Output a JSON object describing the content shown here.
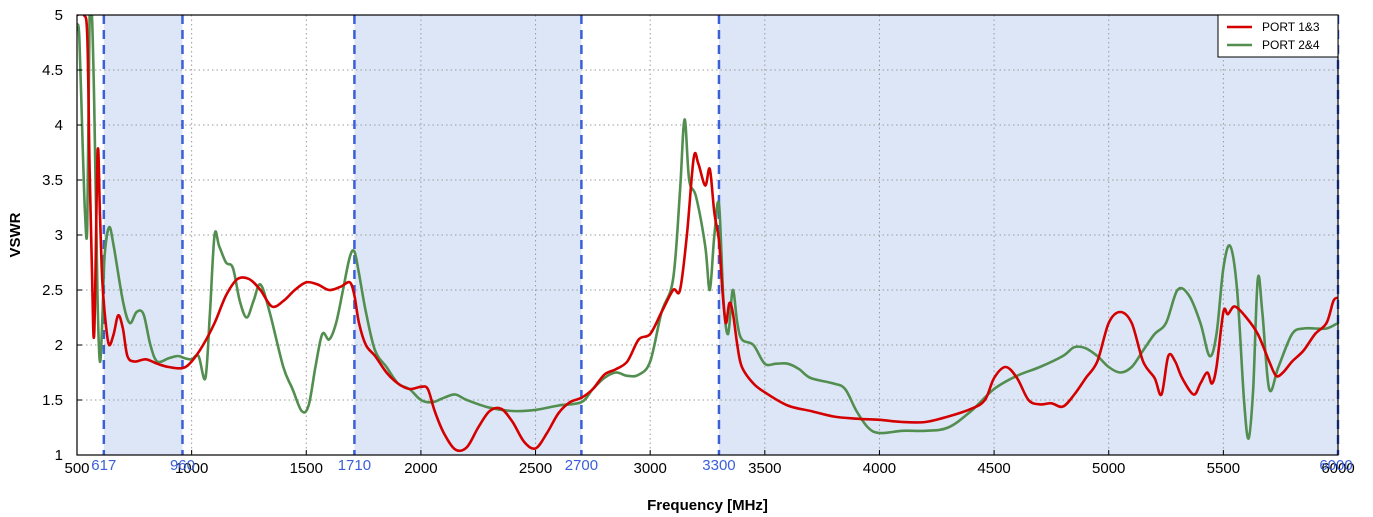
{
  "chart_data": {
    "type": "line",
    "xlabel": "Frequency [MHz]",
    "ylabel": "VSWR",
    "xlim": [
      500,
      6000
    ],
    "ylim": [
      1,
      5
    ],
    "grid": true,
    "legend_position": "top-right",
    "x_ticks": [
      "500",
      "1000",
      "1500",
      "2000",
      "2500",
      "3000",
      "3500",
      "4000",
      "4500",
      "5000",
      "5500",
      "6000"
    ],
    "y_ticks": [
      "1",
      "1.5",
      "2",
      "2.5",
      "3",
      "3.5",
      "4",
      "4.5",
      "5"
    ],
    "x_tick_values": [
      500,
      1000,
      1500,
      2000,
      2500,
      3000,
      3500,
      4000,
      4500,
      5000,
      5500,
      6000
    ],
    "y_tick_values": [
      1,
      1.5,
      2,
      2.5,
      3,
      3.5,
      4,
      4.5,
      5
    ],
    "bands": [
      [
        617,
        960
      ],
      [
        1710,
        2700
      ],
      [
        3300,
        6000
      ]
    ],
    "band_color": "#dde6f7",
    "band_edges": [
      {
        "value": 617,
        "label": "617"
      },
      {
        "value": 960,
        "label": "960"
      },
      {
        "value": 1710,
        "label": "1710"
      },
      {
        "value": 2700,
        "label": "2700"
      },
      {
        "value": 3300,
        "label": "3300"
      },
      {
        "value": 6000,
        "label": "6000"
      }
    ],
    "band_edge_color": "#3a5fd9",
    "series": [
      {
        "name": "PORT 1&3",
        "color": "#d40000",
        "points": [
          [
            500,
            5
          ],
          [
            530,
            5
          ],
          [
            545,
            4.8
          ],
          [
            555,
            3.6
          ],
          [
            565,
            2.7
          ],
          [
            575,
            2.1
          ],
          [
            590,
            3.75
          ],
          [
            600,
            3.2
          ],
          [
            610,
            2.6
          ],
          [
            625,
            2.2
          ],
          [
            640,
            2.0
          ],
          [
            660,
            2.1
          ],
          [
            680,
            2.27
          ],
          [
            700,
            2.15
          ],
          [
            720,
            1.9
          ],
          [
            750,
            1.85
          ],
          [
            800,
            1.87
          ],
          [
            850,
            1.83
          ],
          [
            900,
            1.8
          ],
          [
            960,
            1.79
          ],
          [
            1000,
            1.85
          ],
          [
            1050,
            2.0
          ],
          [
            1100,
            2.2
          ],
          [
            1150,
            2.45
          ],
          [
            1200,
            2.6
          ],
          [
            1250,
            2.6
          ],
          [
            1300,
            2.5
          ],
          [
            1350,
            2.35
          ],
          [
            1400,
            2.4
          ],
          [
            1450,
            2.5
          ],
          [
            1500,
            2.57
          ],
          [
            1550,
            2.55
          ],
          [
            1600,
            2.5
          ],
          [
            1650,
            2.53
          ],
          [
            1690,
            2.57
          ],
          [
            1710,
            2.45
          ],
          [
            1730,
            2.2
          ],
          [
            1760,
            2.0
          ],
          [
            1800,
            1.9
          ],
          [
            1850,
            1.75
          ],
          [
            1900,
            1.65
          ],
          [
            1950,
            1.6
          ],
          [
            2000,
            1.62
          ],
          [
            2030,
            1.6
          ],
          [
            2060,
            1.4
          ],
          [
            2100,
            1.2
          ],
          [
            2150,
            1.05
          ],
          [
            2200,
            1.07
          ],
          [
            2250,
            1.25
          ],
          [
            2300,
            1.4
          ],
          [
            2350,
            1.42
          ],
          [
            2400,
            1.3
          ],
          [
            2450,
            1.12
          ],
          [
            2500,
            1.06
          ],
          [
            2550,
            1.2
          ],
          [
            2600,
            1.38
          ],
          [
            2650,
            1.48
          ],
          [
            2700,
            1.52
          ],
          [
            2750,
            1.6
          ],
          [
            2800,
            1.73
          ],
          [
            2850,
            1.78
          ],
          [
            2900,
            1.85
          ],
          [
            2950,
            2.05
          ],
          [
            3000,
            2.1
          ],
          [
            3050,
            2.3
          ],
          [
            3100,
            2.5
          ],
          [
            3130,
            2.5
          ],
          [
            3160,
            3.0
          ],
          [
            3190,
            3.7
          ],
          [
            3210,
            3.65
          ],
          [
            3240,
            3.45
          ],
          [
            3260,
            3.6
          ],
          [
            3280,
            3.2
          ],
          [
            3300,
            2.95
          ],
          [
            3315,
            2.5
          ],
          [
            3330,
            2.2
          ],
          [
            3345,
            2.38
          ],
          [
            3360,
            2.3
          ],
          [
            3380,
            2.0
          ],
          [
            3400,
            1.8
          ],
          [
            3450,
            1.65
          ],
          [
            3500,
            1.57
          ],
          [
            3600,
            1.45
          ],
          [
            3700,
            1.4
          ],
          [
            3800,
            1.35
          ],
          [
            3900,
            1.33
          ],
          [
            4000,
            1.32
          ],
          [
            4100,
            1.3
          ],
          [
            4200,
            1.3
          ],
          [
            4300,
            1.35
          ],
          [
            4400,
            1.42
          ],
          [
            4460,
            1.5
          ],
          [
            4500,
            1.7
          ],
          [
            4550,
            1.8
          ],
          [
            4600,
            1.7
          ],
          [
            4650,
            1.5
          ],
          [
            4700,
            1.46
          ],
          [
            4750,
            1.47
          ],
          [
            4800,
            1.44
          ],
          [
            4850,
            1.55
          ],
          [
            4900,
            1.7
          ],
          [
            4950,
            1.85
          ],
          [
            5000,
            2.2
          ],
          [
            5050,
            2.3
          ],
          [
            5100,
            2.2
          ],
          [
            5150,
            1.85
          ],
          [
            5200,
            1.7
          ],
          [
            5230,
            1.55
          ],
          [
            5260,
            1.9
          ],
          [
            5290,
            1.85
          ],
          [
            5320,
            1.7
          ],
          [
            5370,
            1.55
          ],
          [
            5400,
            1.65
          ],
          [
            5430,
            1.75
          ],
          [
            5450,
            1.65
          ],
          [
            5470,
            1.8
          ],
          [
            5500,
            2.3
          ],
          [
            5520,
            2.28
          ],
          [
            5550,
            2.35
          ],
          [
            5600,
            2.25
          ],
          [
            5650,
            2.1
          ],
          [
            5700,
            1.85
          ],
          [
            5730,
            1.72
          ],
          [
            5760,
            1.75
          ],
          [
            5800,
            1.85
          ],
          [
            5850,
            1.95
          ],
          [
            5900,
            2.1
          ],
          [
            5950,
            2.2
          ],
          [
            5980,
            2.4
          ],
          [
            6000,
            2.43
          ]
        ]
      },
      {
        "name": "PORT 2&4",
        "color": "#528e4f",
        "points": [
          [
            500,
            4.9
          ],
          [
            510,
            4.8
          ],
          [
            525,
            3.8
          ],
          [
            535,
            3.2
          ],
          [
            545,
            3.1
          ],
          [
            555,
            5
          ],
          [
            565,
            5
          ],
          [
            575,
            4.2
          ],
          [
            590,
            2.4
          ],
          [
            600,
            1.85
          ],
          [
            610,
            2.2
          ],
          [
            620,
            2.8
          ],
          [
            640,
            3.07
          ],
          [
            660,
            2.9
          ],
          [
            700,
            2.4
          ],
          [
            730,
            2.2
          ],
          [
            760,
            2.3
          ],
          [
            790,
            2.28
          ],
          [
            820,
            2.0
          ],
          [
            850,
            1.85
          ],
          [
            900,
            1.88
          ],
          [
            940,
            1.9
          ],
          [
            970,
            1.88
          ],
          [
            1000,
            1.87
          ],
          [
            1030,
            1.9
          ],
          [
            1060,
            1.7
          ],
          [
            1080,
            2.3
          ],
          [
            1100,
            3.0
          ],
          [
            1120,
            2.9
          ],
          [
            1150,
            2.75
          ],
          [
            1180,
            2.7
          ],
          [
            1210,
            2.4
          ],
          [
            1240,
            2.25
          ],
          [
            1270,
            2.4
          ],
          [
            1300,
            2.55
          ],
          [
            1340,
            2.3
          ],
          [
            1400,
            1.8
          ],
          [
            1440,
            1.6
          ],
          [
            1480,
            1.4
          ],
          [
            1510,
            1.45
          ],
          [
            1540,
            1.8
          ],
          [
            1570,
            2.1
          ],
          [
            1600,
            2.05
          ],
          [
            1630,
            2.2
          ],
          [
            1660,
            2.5
          ],
          [
            1690,
            2.8
          ],
          [
            1710,
            2.85
          ],
          [
            1730,
            2.65
          ],
          [
            1760,
            2.3
          ],
          [
            1800,
            1.95
          ],
          [
            1850,
            1.8
          ],
          [
            1900,
            1.65
          ],
          [
            1950,
            1.6
          ],
          [
            2000,
            1.5
          ],
          [
            2050,
            1.48
          ],
          [
            2100,
            1.52
          ],
          [
            2150,
            1.55
          ],
          [
            2200,
            1.5
          ],
          [
            2300,
            1.43
          ],
          [
            2400,
            1.4
          ],
          [
            2500,
            1.41
          ],
          [
            2600,
            1.45
          ],
          [
            2700,
            1.48
          ],
          [
            2750,
            1.6
          ],
          [
            2800,
            1.7
          ],
          [
            2850,
            1.75
          ],
          [
            2900,
            1.72
          ],
          [
            2950,
            1.73
          ],
          [
            3000,
            1.85
          ],
          [
            3050,
            2.3
          ],
          [
            3100,
            2.6
          ],
          [
            3130,
            3.4
          ],
          [
            3150,
            4.05
          ],
          [
            3170,
            3.5
          ],
          [
            3200,
            3.35
          ],
          [
            3240,
            2.9
          ],
          [
            3260,
            2.5
          ],
          [
            3280,
            3.0
          ],
          [
            3300,
            3.28
          ],
          [
            3320,
            2.4
          ],
          [
            3340,
            2.1
          ],
          [
            3360,
            2.5
          ],
          [
            3380,
            2.2
          ],
          [
            3400,
            2.05
          ],
          [
            3450,
            2.0
          ],
          [
            3500,
            1.83
          ],
          [
            3550,
            1.83
          ],
          [
            3600,
            1.83
          ],
          [
            3650,
            1.78
          ],
          [
            3700,
            1.7
          ],
          [
            3800,
            1.65
          ],
          [
            3850,
            1.6
          ],
          [
            3900,
            1.4
          ],
          [
            3950,
            1.25
          ],
          [
            4000,
            1.2
          ],
          [
            4100,
            1.22
          ],
          [
            4200,
            1.22
          ],
          [
            4300,
            1.25
          ],
          [
            4400,
            1.4
          ],
          [
            4500,
            1.6
          ],
          [
            4600,
            1.72
          ],
          [
            4700,
            1.8
          ],
          [
            4800,
            1.9
          ],
          [
            4850,
            1.98
          ],
          [
            4900,
            1.97
          ],
          [
            4950,
            1.9
          ],
          [
            5000,
            1.8
          ],
          [
            5050,
            1.75
          ],
          [
            5100,
            1.8
          ],
          [
            5150,
            1.95
          ],
          [
            5200,
            2.1
          ],
          [
            5250,
            2.2
          ],
          [
            5300,
            2.5
          ],
          [
            5350,
            2.45
          ],
          [
            5400,
            2.2
          ],
          [
            5440,
            1.9
          ],
          [
            5470,
            2.1
          ],
          [
            5500,
            2.7
          ],
          [
            5530,
            2.9
          ],
          [
            5560,
            2.5
          ],
          [
            5590,
            1.5
          ],
          [
            5610,
            1.15
          ],
          [
            5630,
            1.6
          ],
          [
            5650,
            2.6
          ],
          [
            5670,
            2.3
          ],
          [
            5700,
            1.6
          ],
          [
            5740,
            1.8
          ],
          [
            5800,
            2.1
          ],
          [
            5850,
            2.15
          ],
          [
            5900,
            2.15
          ],
          [
            5950,
            2.15
          ],
          [
            6000,
            2.2
          ]
        ]
      }
    ]
  }
}
